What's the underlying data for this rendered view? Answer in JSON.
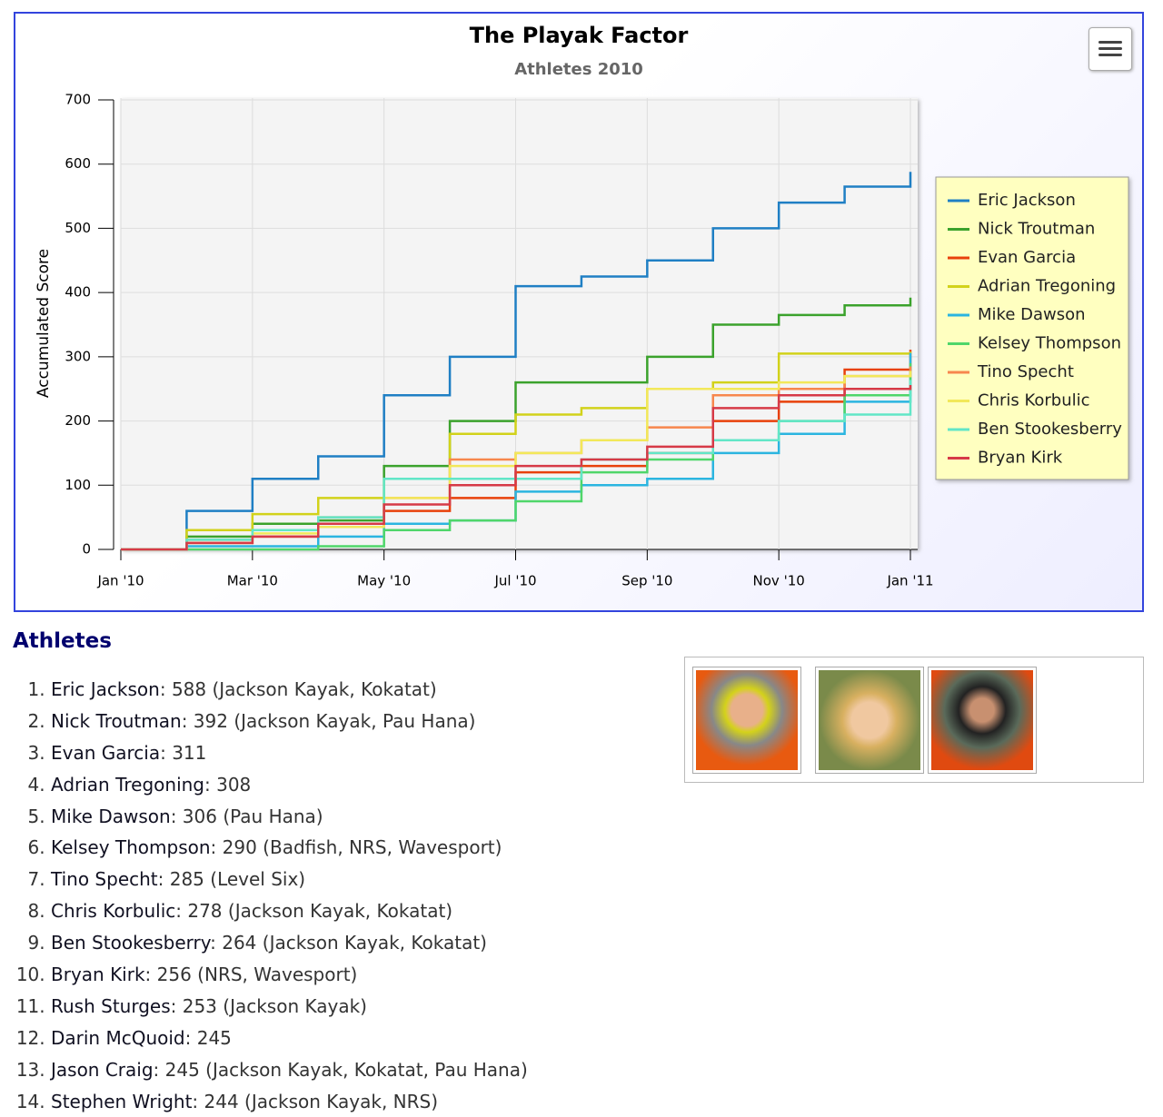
{
  "chart_data": {
    "type": "line",
    "title": "The Playak Factor",
    "subtitle": "Athletes 2010",
    "y_axis_title": "Accumulated Score",
    "x": [
      "2010-01",
      "2010-02",
      "2010-03",
      "2010-04",
      "2010-05",
      "2010-06",
      "2010-07",
      "2010-08",
      "2010-09",
      "2010-10",
      "2010-11",
      "2010-12",
      "2011-01"
    ],
    "xlim": [
      "2010-01",
      "2011-01"
    ],
    "xticks": [
      {
        "value": "2010-01",
        "label": "Jan '10"
      },
      {
        "value": "2010-03",
        "label": "Mar '10"
      },
      {
        "value": "2010-05",
        "label": "May '10"
      },
      {
        "value": "2010-07",
        "label": "Jul '10"
      },
      {
        "value": "2010-09",
        "label": "Sep '10"
      },
      {
        "value": "2010-11",
        "label": "Nov '10"
      },
      {
        "value": "2011-01",
        "label": "Jan '11"
      }
    ],
    "ylim": [
      0,
      700
    ],
    "yticks": [
      0,
      100,
      200,
      300,
      400,
      500,
      600,
      700
    ],
    "grid": true,
    "step": true,
    "legend": "right",
    "series": [
      {
        "name": "Eric Jackson",
        "color": "#1f7fc4",
        "values": [
          0,
          60,
          110,
          145,
          240,
          300,
          410,
          425,
          450,
          500,
          540,
          565,
          588
        ]
      },
      {
        "name": "Nick Troutman",
        "color": "#3ba22c",
        "values": [
          0,
          20,
          40,
          45,
          130,
          200,
          260,
          260,
          300,
          350,
          365,
          380,
          392
        ]
      },
      {
        "name": "Evan Garcia",
        "color": "#e8410b",
        "values": [
          0,
          10,
          20,
          35,
          60,
          80,
          120,
          130,
          150,
          200,
          230,
          280,
          311
        ]
      },
      {
        "name": "Adrian Tregoning",
        "color": "#d2d21a",
        "values": [
          0,
          30,
          55,
          80,
          110,
          180,
          210,
          220,
          250,
          260,
          305,
          305,
          308
        ]
      },
      {
        "name": "Mike Dawson",
        "color": "#2bb5e0",
        "values": [
          0,
          5,
          5,
          20,
          40,
          45,
          90,
          100,
          110,
          150,
          180,
          230,
          306
        ]
      },
      {
        "name": "Kelsey Thompson",
        "color": "#4fd66a",
        "values": [
          0,
          0,
          0,
          5,
          30,
          45,
          75,
          120,
          140,
          170,
          200,
          240,
          290
        ]
      },
      {
        "name": "Tino Specht",
        "color": "#f7874e",
        "values": [
          0,
          15,
          30,
          50,
          80,
          140,
          150,
          170,
          190,
          240,
          250,
          270,
          285
        ]
      },
      {
        "name": "Chris Korbulic",
        "color": "#f2e85a",
        "values": [
          0,
          10,
          25,
          35,
          80,
          130,
          150,
          170,
          250,
          250,
          260,
          270,
          278
        ]
      },
      {
        "name": "Ben Stookesberry",
        "color": "#62e6c7",
        "values": [
          0,
          15,
          30,
          50,
          110,
          110,
          110,
          140,
          150,
          170,
          200,
          210,
          264
        ]
      },
      {
        "name": "Bryan Kirk",
        "color": "#d63a47",
        "values": [
          0,
          10,
          20,
          40,
          70,
          100,
          130,
          140,
          160,
          220,
          240,
          250,
          256
        ]
      }
    ]
  },
  "athletes": {
    "heading": "Athletes",
    "items": [
      {
        "name": "Eric Jackson",
        "detail": ": 588 (Jackson Kayak, Kokatat)"
      },
      {
        "name": "Nick Troutman",
        "detail": ": 392 (Jackson Kayak, Pau Hana)"
      },
      {
        "name": "Evan Garcia",
        "detail": ": 311"
      },
      {
        "name": "Adrian Tregoning",
        "detail": ": 308"
      },
      {
        "name": "Mike Dawson",
        "detail": ": 306 (Pau Hana)"
      },
      {
        "name": "Kelsey Thompson",
        "detail": ": 290 (Badfish, NRS, Wavesport)"
      },
      {
        "name": "Tino Specht",
        "detail": ": 285 (Level Six)"
      },
      {
        "name": "Chris Korbulic",
        "detail": ": 278 (Jackson Kayak, Kokatat)"
      },
      {
        "name": "Ben Stookesberry",
        "detail": ": 264 (Jackson Kayak, Kokatat)"
      },
      {
        "name": "Bryan Kirk",
        "detail": ": 256 (NRS, Wavesport)"
      },
      {
        "name": "Rush Sturges",
        "detail": ": 253 (Jackson Kayak)"
      },
      {
        "name": "Darin McQuoid",
        "detail": ": 245"
      },
      {
        "name": "Jason Craig",
        "detail": ": 245 (Jackson Kayak, Kokatat, Pau Hana)"
      },
      {
        "name": "Stephen Wright",
        "detail": ": 244 (Jackson Kayak, NRS)"
      }
    ]
  }
}
